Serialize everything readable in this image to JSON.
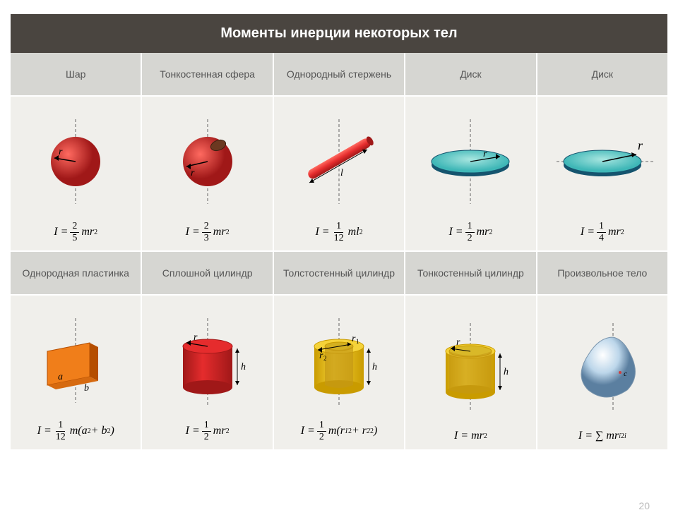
{
  "title": "Моменты инерции некоторых тел",
  "page_number": "20",
  "colors": {
    "title_bg": "#4a4540",
    "header_bg": "#d6d6d2",
    "cell_bg": "#f0efeb",
    "red": "#e52c2d",
    "red_dark": "#a01818",
    "red_light": "#ff6a60",
    "teal": "#3fb7b7",
    "teal_dark": "#15546e",
    "orange": "#f07e1a",
    "orange_dark": "#b54e00",
    "yellow": "#f5d33a",
    "yellow_dark": "#c99b00",
    "blue_light": "#bcd6ea",
    "blue_shadow": "#5b7fa0",
    "axis": "#666666"
  },
  "rows": [
    {
      "headers": [
        "Шар",
        "Тонкостенная сфера",
        "Однородный стержень",
        "Диск",
        "Диск"
      ],
      "cells": [
        {
          "kind": "sphere_solid",
          "label": "r",
          "formula": {
            "pre": "I =",
            "frac": [
              "2",
              "5"
            ],
            "post": "mr",
            "sup": "2"
          }
        },
        {
          "kind": "sphere_hollow",
          "label": "r",
          "formula": {
            "pre": "I =",
            "frac": [
              "2",
              "3"
            ],
            "post": "mr",
            "sup": "2"
          }
        },
        {
          "kind": "rod",
          "label": "l",
          "formula": {
            "pre": "I =",
            "frac": [
              "1",
              "12"
            ],
            "post": "ml",
            "sup": "2"
          }
        },
        {
          "kind": "disk_center",
          "label": "r",
          "formula": {
            "pre": "I =",
            "frac": [
              "1",
              "2"
            ],
            "post": "mr",
            "sup": "2"
          }
        },
        {
          "kind": "disk_edge",
          "label": "r",
          "formula": {
            "pre": "I =",
            "frac": [
              "1",
              "4"
            ],
            "post": "mr",
            "sup": "2"
          }
        }
      ]
    },
    {
      "headers": [
        "Однородная пластинка",
        "Сплошной цилиндр",
        "Толстостенный цилиндр",
        "Тонкостенный цилиндр",
        "Произвольное тело"
      ],
      "cells": [
        {
          "kind": "plate",
          "labels": [
            "a",
            "b"
          ],
          "formula": {
            "pre": "I =",
            "frac": [
              "1",
              "12"
            ],
            "post": "m(a",
            "sup": "2",
            "post2": "+ b",
            "sup2": "2",
            "post3": ")"
          }
        },
        {
          "kind": "cyl_solid",
          "labels": [
            "r",
            "h"
          ],
          "formula": {
            "pre": "I =",
            "frac": [
              "1",
              "2"
            ],
            "post": "mr",
            "sup": "2"
          }
        },
        {
          "kind": "cyl_thick",
          "labels": [
            "r₁",
            "r₂",
            "h"
          ],
          "formula": {
            "pre": "I =",
            "frac": [
              "1",
              "2"
            ],
            "post": "m(r",
            "sub": "1",
            "sup": "2",
            "post2": "+ r",
            "sub2": "2",
            "sup2": "2",
            "post3": ")"
          }
        },
        {
          "kind": "cyl_thin",
          "labels": [
            "r",
            "h"
          ],
          "formula": {
            "pre": "I = mr",
            "sup": "2"
          }
        },
        {
          "kind": "blob",
          "label": "c",
          "formula": {
            "pre": "I = ∑ m",
            "sub": "i",
            "post": " r",
            "sub2": "i",
            "sup": "2"
          }
        }
      ]
    }
  ]
}
